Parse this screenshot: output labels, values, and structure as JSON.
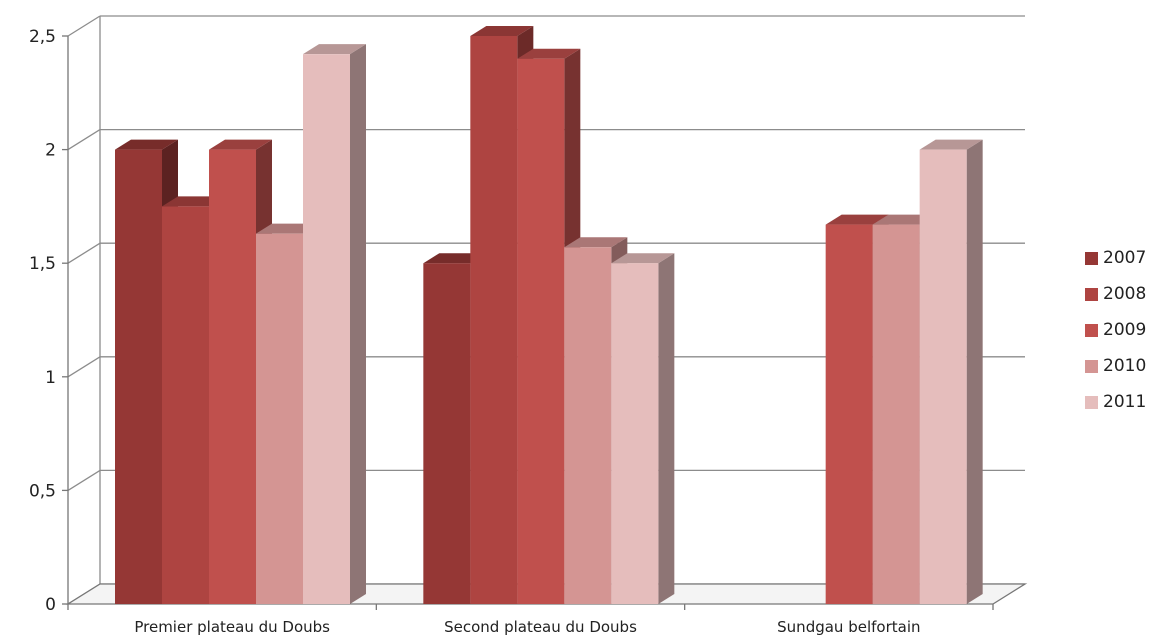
{
  "chart_data": {
    "type": "bar",
    "categories": [
      "Premier plateau du Doubs",
      "Second plateau du Doubs",
      "Sundgau belfortain"
    ],
    "series": [
      {
        "name": "2007",
        "values": [
          2.0,
          1.5,
          null
        ],
        "color": "#953735"
      },
      {
        "name": "2008",
        "values": [
          1.75,
          2.5,
          null
        ],
        "color": "#AE4441"
      },
      {
        "name": "2009",
        "values": [
          2.0,
          2.4,
          1.67
        ],
        "color": "#C0504D"
      },
      {
        "name": "2010",
        "values": [
          1.63,
          1.57,
          1.67
        ],
        "color": "#D49593"
      },
      {
        "name": "2011",
        "values": [
          2.42,
          1.5,
          2.0
        ],
        "color": "#E5BDBC"
      }
    ],
    "yticks": [
      "0",
      "0,5",
      "1",
      "1,5",
      "2",
      "2,5"
    ],
    "ylim": [
      0,
      2.5
    ],
    "grid": true,
    "legend_position": "right",
    "style": "3d-column"
  }
}
